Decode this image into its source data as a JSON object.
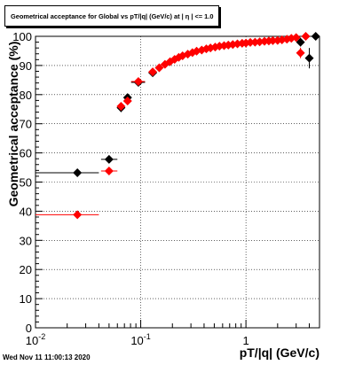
{
  "chart_data": {
    "type": "scatter",
    "title": "Geometrical acceptance for Global vs pT/|q| (GeV/c) at | η | <= 1.0",
    "xlabel": "pT/|q| (GeV/c)",
    "ylabel": "Geometrical acceptance (%)",
    "xscale": "log",
    "xlim": [
      0.01,
      5.0
    ],
    "ylim": [
      0,
      100
    ],
    "grid": true,
    "x_tick_labels": [
      {
        "value": 0.01,
        "base": "10",
        "exp": "-2"
      },
      {
        "value": 0.1,
        "base": "10",
        "exp": "-1"
      },
      {
        "value": 1,
        "base": "1",
        "exp": ""
      }
    ],
    "y_ticks": [
      0,
      10,
      20,
      30,
      40,
      50,
      60,
      70,
      80,
      90,
      100
    ],
    "series": [
      {
        "color": "#000000",
        "marker": "diamond",
        "points": [
          {
            "x": 0.025,
            "y": 53.2,
            "xlo": 0.01,
            "xhi": 0.04,
            "ylo": 52.2,
            "yhi": 54.2
          },
          {
            "x": 0.05,
            "y": 57.8,
            "xlo": 0.042,
            "xhi": 0.06,
            "ylo": 56.6,
            "yhi": 59.0
          },
          {
            "x": 0.065,
            "y": 75.5,
            "xlo": 0.061,
            "xhi": 0.07,
            "ylo": 74.0,
            "yhi": 77.0
          },
          {
            "x": 0.075,
            "y": 79.0,
            "xlo": 0.071,
            "xhi": 0.08,
            "ylo": 77.8,
            "yhi": 80.2
          },
          {
            "x": 0.095,
            "y": 84.2,
            "xlo": 0.081,
            "xhi": 0.11,
            "ylo": 83.3,
            "yhi": 85.1
          },
          {
            "x": 0.13,
            "y": 87.5,
            "xlo": 0.12,
            "xhi": 0.14,
            "ylo": 86.7,
            "yhi": 88.3
          },
          {
            "x": 3.3,
            "y": 98.0,
            "xlo": 3.1,
            "xhi": 3.5,
            "ylo": 96.5,
            "yhi": 99.5
          },
          {
            "x": 4.0,
            "y": 92.5,
            "xlo": 3.8,
            "xhi": 4.2,
            "ylo": 89.0,
            "yhi": 96.0
          },
          {
            "x": 4.6,
            "y": 100.0,
            "xlo": 4.4,
            "xhi": 4.8,
            "ylo": 99.3,
            "yhi": 100.0
          }
        ]
      },
      {
        "color": "#ff0000",
        "marker": "diamond",
        "points": [
          {
            "x": 0.025,
            "y": 38.8,
            "xlo": 0.01,
            "xhi": 0.04,
            "ylo": 38.0,
            "yhi": 39.6
          },
          {
            "x": 0.05,
            "y": 53.8,
            "xlo": 0.042,
            "xhi": 0.06,
            "ylo": 52.8,
            "yhi": 54.8
          },
          {
            "x": 0.065,
            "y": 76.0,
            "xlo": 0.061,
            "xhi": 0.07,
            "ylo": 74.8,
            "yhi": 77.2
          },
          {
            "x": 0.075,
            "y": 77.8,
            "xlo": 0.071,
            "xhi": 0.08,
            "ylo": 76.8,
            "yhi": 78.8
          },
          {
            "x": 0.095,
            "y": 84.5,
            "xlo": 0.081,
            "xhi": 0.11,
            "ylo": 83.8,
            "yhi": 85.2
          },
          {
            "x": 0.13,
            "y": 87.8
          },
          {
            "x": 0.15,
            "y": 89.2
          },
          {
            "x": 0.17,
            "y": 90.4
          },
          {
            "x": 0.19,
            "y": 91.3
          },
          {
            "x": 0.21,
            "y": 92.1
          },
          {
            "x": 0.23,
            "y": 92.8
          },
          {
            "x": 0.25,
            "y": 93.3
          },
          {
            "x": 0.28,
            "y": 93.9
          },
          {
            "x": 0.31,
            "y": 94.4
          },
          {
            "x": 0.34,
            "y": 94.9
          },
          {
            "x": 0.38,
            "y": 95.3
          },
          {
            "x": 0.42,
            "y": 95.7
          },
          {
            "x": 0.46,
            "y": 96.0
          },
          {
            "x": 0.51,
            "y": 96.3
          },
          {
            "x": 0.56,
            "y": 96.6
          },
          {
            "x": 0.62,
            "y": 96.8
          },
          {
            "x": 0.68,
            "y": 97.0
          },
          {
            "x": 0.75,
            "y": 97.2
          },
          {
            "x": 0.83,
            "y": 97.4
          },
          {
            "x": 0.92,
            "y": 97.6
          },
          {
            "x": 1.0,
            "y": 97.7
          },
          {
            "x": 1.1,
            "y": 97.9
          },
          {
            "x": 1.22,
            "y": 98.0
          },
          {
            "x": 1.35,
            "y": 98.1
          },
          {
            "x": 1.5,
            "y": 98.3
          },
          {
            "x": 1.65,
            "y": 98.4
          },
          {
            "x": 1.8,
            "y": 98.5
          },
          {
            "x": 2.0,
            "y": 98.6
          },
          {
            "x": 2.2,
            "y": 98.8
          },
          {
            "x": 2.45,
            "y": 99.0
          },
          {
            "x": 2.7,
            "y": 99.3
          },
          {
            "x": 3.0,
            "y": 99.6
          },
          {
            "x": 3.3,
            "y": 94.3,
            "xlo": 3.1,
            "xhi": 3.5,
            "ylo": 92.5,
            "yhi": 96.1
          },
          {
            "x": 3.7,
            "y": 100.0
          }
        ]
      }
    ]
  },
  "footer": {
    "timestamp": "Wed Nov 11 11:00:13 2020"
  }
}
